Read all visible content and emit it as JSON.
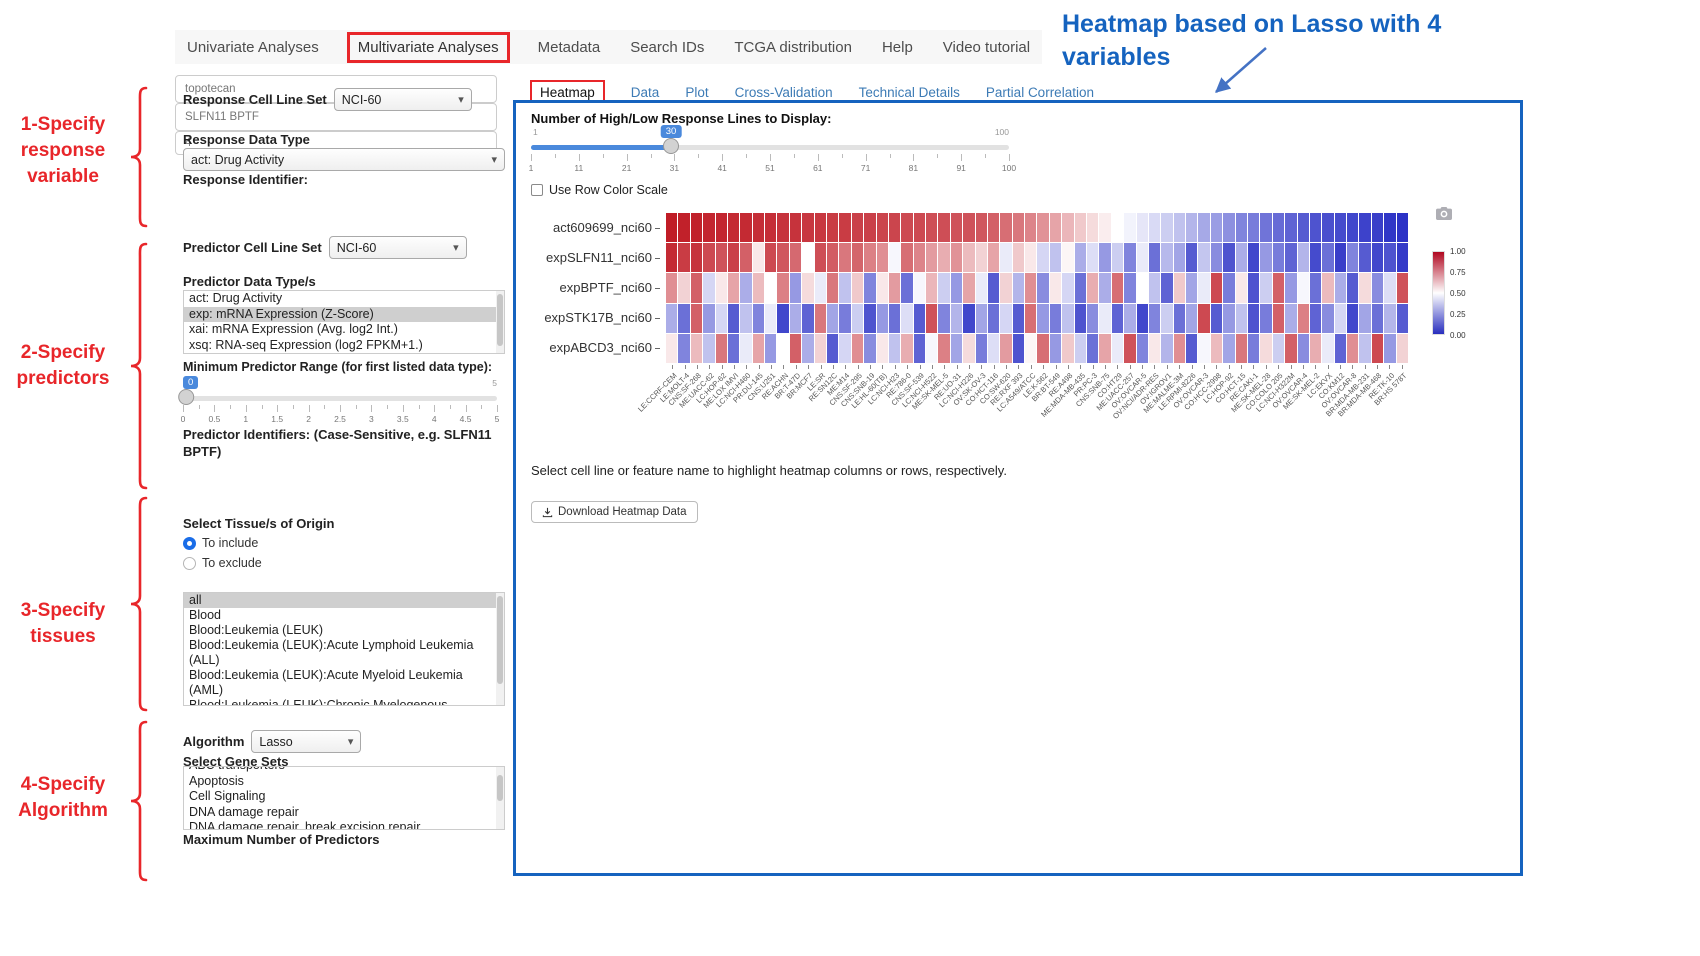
{
  "annotations": {
    "steps": [
      "1-Specify\nresponse\nvariable",
      "2-Specify\npredictors",
      "3-Specify\ntissues",
      "4-Specify\nAlgorithm"
    ],
    "heatmap_note": "Heatmap based on Lasso with 4 variables",
    "accent_red": "#e8262a",
    "accent_blue": "#1563bf"
  },
  "nav": {
    "items": [
      {
        "label": "Univariate Analyses",
        "red_boxed": false,
        "active": false
      },
      {
        "label": "Multivariate Analyses",
        "red_boxed": true,
        "active": true
      },
      {
        "label": "Metadata",
        "red_boxed": false,
        "active": false
      },
      {
        "label": "Search IDs",
        "red_boxed": false,
        "active": false
      },
      {
        "label": "TCGA distribution",
        "red_boxed": false,
        "active": false
      },
      {
        "label": "Help",
        "red_boxed": false,
        "active": false
      },
      {
        "label": "Video tutorial",
        "red_boxed": false,
        "active": false
      }
    ]
  },
  "sidebar": {
    "response_cell_line_set": {
      "label": "Response Cell Line Set",
      "value": "NCI-60"
    },
    "response_data_type": {
      "label": "Response Data Type",
      "value": "act: Drug Activity"
    },
    "response_identifier": {
      "label": "Response Identifier:",
      "value": "topotecan"
    },
    "predictor_cell_line_set": {
      "label": "Predictor Cell Line Set",
      "value": "NCI-60"
    },
    "predictor_data_types": {
      "label": "Predictor Data Type/s",
      "options": [
        "act: Drug Activity",
        "exp: mRNA Expression (Z-Score)",
        "xai: mRNA Expression (Avg. log2 Int.)",
        "xsq: RNA-seq Expression (log2 FPKM+1.)"
      ],
      "selected": "exp: mRNA Expression (Z-Score)"
    },
    "min_predictor_range": {
      "label": "Minimum Predictor Range (for first listed data type):",
      "value": 0,
      "min": 0,
      "max": 5,
      "value_label": "0",
      "max_label": "5",
      "ticks": [
        "0",
        "0.5",
        "1",
        "1.5",
        "2",
        "2.5",
        "3",
        "3.5",
        "4",
        "4.5",
        "5"
      ]
    },
    "predictor_identifiers": {
      "label": "Predictor Identifiers: (Case-Sensitive, e.g. SLFN11 BPTF)",
      "value": "SLFN11 BPTF"
    },
    "tissue": {
      "label": "Select Tissue/s of Origin",
      "radios": [
        {
          "label": "To include",
          "checked": true
        },
        {
          "label": "To exclude",
          "checked": false
        }
      ],
      "options": [
        "all",
        "Blood",
        "Blood:Leukemia (LEUK)",
        "Blood:Leukemia (LEUK):Acute Lymphoid Leukemia (ALL)",
        "Blood:Leukemia (LEUK):Acute Myeloid Leukemia (AML)",
        "Blood:Leukemia (LEUK):Chronic Myelogenous Leukemia (CML)"
      ],
      "selected": "all"
    },
    "algorithm": {
      "label": "Algorithm",
      "value": "Lasso"
    },
    "gene_sets": {
      "label": "Select Gene Sets",
      "options": [
        "ABC transporters",
        "Apoptosis",
        "Cell Signaling",
        "DNA damage repair",
        "DNA damage repair, break excision repair"
      ],
      "selected": null
    },
    "max_predictors": {
      "label": "Maximum Number of Predictors",
      "value": "4"
    }
  },
  "main": {
    "tabs": [
      {
        "label": "Heatmap",
        "active": true,
        "red_boxed": true
      },
      {
        "label": "Data",
        "active": false,
        "red_boxed": false
      },
      {
        "label": "Plot",
        "active": false,
        "red_boxed": false
      },
      {
        "label": "Cross-Validation",
        "active": false,
        "red_boxed": false
      },
      {
        "label": "Technical Details",
        "active": false,
        "red_boxed": false
      },
      {
        "label": "Partial Correlation",
        "active": false,
        "red_boxed": false
      }
    ],
    "slider": {
      "label": "Number of High/Low Response Lines to Display:",
      "value": 30,
      "min": 1,
      "max": 100,
      "value_label": "30",
      "min_label": "1",
      "max_label": "100",
      "ticks": [
        "1",
        "11",
        "21",
        "31",
        "41",
        "51",
        "61",
        "71",
        "81",
        "91",
        "100"
      ]
    },
    "row_scale_checkbox": {
      "label": "Use Row Color Scale",
      "checked": false
    },
    "hint": "Select cell line or feature name to highlight heatmap columns or rows, respectively.",
    "download_button": "Download Heatmap Data"
  },
  "chart_data": {
    "type": "heatmap",
    "rows": [
      "act609699_nci60",
      "expSLFN11_nci60",
      "expBPTF_nci60",
      "expSTK17B_nci60",
      "expABCD3_nci60"
    ],
    "columns": [
      "LE:CCRF-CEM",
      "LE:MOLT-4",
      "CNS:SF-268",
      "ME:UACC-62",
      "LC:HOP-62",
      "ME:LOX IMVI",
      "LC:NCI-H460",
      "PR:DU-145",
      "CNS:U251",
      "RE:ACHN",
      "BR:T-47D",
      "BR:MCF7",
      "LE:SR",
      "RE:SN12C",
      "ME:M14",
      "CNS:SF-295",
      "CNS:SNB-19",
      "LE:HL-60(TB)",
      "LC:NCI-H23",
      "RE:786-0",
      "CNS:SF-539",
      "LC:NCI-H522",
      "ME:SK-MEL-5",
      "RE:UO-31",
      "LC:NCI-H226",
      "OV:SK-OV-3",
      "CO:HCT-116",
      "CO:SW-620",
      "RE:RXF 393",
      "LC:A549/ATCC",
      "LE:K-562",
      "BR:BT-549",
      "RE:A498",
      "ME:MDA-MB-435",
      "PR:PC-3",
      "CNS:SNB-75",
      "CO:HT29",
      "ME:UACC-257",
      "OV:OVCAR-5",
      "OV:NCI/ADR-RES",
      "OV:IGROV1",
      "ME:MALME-3M",
      "LE:RPMI-8226",
      "OV:OVCAR-3",
      "CO:HCC-2998",
      "LC:HOP-92",
      "CO:HCT-15",
      "RE:CAKI-1",
      "ME:SK-MEL-28",
      "CO:COLO 205",
      "LC:NCI-H322M",
      "OV:OVCAR-4",
      "ME:SK-MEL-2",
      "LC:EKVX",
      "CO:KM12",
      "OV:OVCAR-8",
      "BR:MDA-MB-231",
      "BR:MDA-MB-468",
      "RE:TK-10",
      "BR:HS 578T"
    ],
    "values": [
      [
        1.0,
        0.99,
        0.99,
        0.98,
        0.98,
        0.97,
        0.97,
        0.96,
        0.96,
        0.95,
        0.95,
        0.94,
        0.94,
        0.93,
        0.93,
        0.92,
        0.92,
        0.91,
        0.91,
        0.9,
        0.9,
        0.89,
        0.89,
        0.88,
        0.88,
        0.87,
        0.85,
        0.82,
        0.8,
        0.77,
        0.74,
        0.7,
        0.66,
        0.62,
        0.58,
        0.54,
        0.5,
        0.47,
        0.44,
        0.41,
        0.38,
        0.35,
        0.32,
        0.29,
        0.26,
        0.23,
        0.2,
        0.18,
        0.16,
        0.14,
        0.12,
        0.1,
        0.08,
        0.07,
        0.06,
        0.05,
        0.04,
        0.03,
        0.01,
        0.0
      ],
      [
        0.97,
        0.93,
        0.95,
        0.9,
        0.88,
        0.92,
        0.85,
        0.55,
        0.9,
        0.87,
        0.83,
        0.5,
        0.89,
        0.86,
        0.8,
        0.84,
        0.78,
        0.75,
        0.48,
        0.82,
        0.77,
        0.72,
        0.68,
        0.74,
        0.65,
        0.6,
        0.7,
        0.45,
        0.62,
        0.55,
        0.4,
        0.35,
        0.52,
        0.3,
        0.42,
        0.25,
        0.38,
        0.2,
        0.45,
        0.15,
        0.33,
        0.28,
        0.1,
        0.36,
        0.22,
        0.08,
        0.3,
        0.05,
        0.25,
        0.18,
        0.12,
        0.32,
        0.06,
        0.15,
        0.03,
        0.2,
        0.1,
        0.05,
        0.08,
        0.02
      ],
      [
        0.75,
        0.6,
        0.85,
        0.4,
        0.55,
        0.7,
        0.3,
        0.65,
        0.5,
        0.78,
        0.25,
        0.58,
        0.45,
        0.8,
        0.35,
        0.62,
        0.2,
        0.55,
        0.72,
        0.15,
        0.48,
        0.66,
        0.38,
        0.25,
        0.7,
        0.45,
        0.1,
        0.6,
        0.32,
        0.75,
        0.22,
        0.55,
        0.4,
        0.15,
        0.68,
        0.3,
        0.82,
        0.2,
        0.5,
        0.35,
        0.12,
        0.62,
        0.28,
        0.45,
        0.9,
        0.18,
        0.55,
        0.08,
        0.38,
        0.85,
        0.25,
        0.48,
        0.15,
        0.65,
        0.3,
        0.1,
        0.58,
        0.22,
        0.42,
        0.88
      ],
      [
        0.3,
        0.15,
        0.85,
        0.25,
        0.4,
        0.1,
        0.35,
        0.2,
        0.45,
        0.05,
        0.3,
        0.12,
        0.8,
        0.28,
        0.18,
        0.38,
        0.08,
        0.25,
        0.15,
        0.42,
        0.1,
        0.88,
        0.2,
        0.32,
        0.05,
        0.28,
        0.15,
        0.4,
        0.1,
        0.82,
        0.25,
        0.18,
        0.35,
        0.08,
        0.22,
        0.45,
        0.12,
        0.3,
        0.05,
        0.2,
        0.38,
        0.15,
        0.28,
        0.9,
        0.1,
        0.25,
        0.35,
        0.08,
        0.18,
        0.85,
        0.3,
        0.78,
        0.12,
        0.22,
        0.4,
        0.05,
        0.28,
        0.15,
        0.32,
        0.1
      ],
      [
        0.55,
        0.2,
        0.65,
        0.35,
        0.8,
        0.15,
        0.45,
        0.7,
        0.25,
        0.5,
        0.85,
        0.3,
        0.6,
        0.1,
        0.4,
        0.75,
        0.22,
        0.55,
        0.35,
        0.68,
        0.12,
        0.48,
        0.78,
        0.28,
        0.58,
        0.18,
        0.42,
        0.72,
        0.08,
        0.52,
        0.82,
        0.25,
        0.62,
        0.38,
        0.15,
        0.7,
        0.45,
        0.88,
        0.2,
        0.55,
        0.32,
        0.75,
        0.1,
        0.48,
        0.65,
        0.28,
        0.8,
        0.18,
        0.58,
        0.38,
        0.85,
        0.22,
        0.68,
        0.45,
        0.12,
        0.75,
        0.35,
        0.9,
        0.25,
        0.6
      ]
    ],
    "colorscale": {
      "high": "#c01c26",
      "mid": "#ffffff",
      "low": "#2c32c6",
      "ticks": [
        "1.00",
        "0.75",
        "0.50",
        "0.25",
        "0.00"
      ]
    },
    "legend_position": "right"
  }
}
